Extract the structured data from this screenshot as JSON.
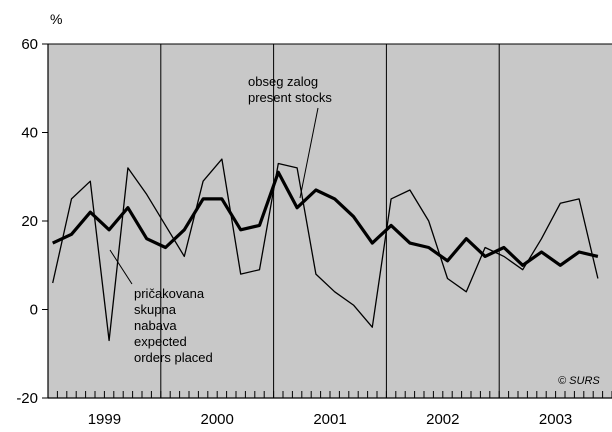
{
  "chart_data": {
    "type": "line",
    "unit_label": "%",
    "ylim": [
      -20,
      60
    ],
    "y_ticks": [
      -20,
      0,
      20,
      40,
      60
    ],
    "x_start": "1999-01",
    "x_end": "2003-12",
    "year_labels": [
      "1999",
      "2000",
      "2001",
      "2002",
      "2003"
    ],
    "year_separators": [
      "1999-12",
      "2000-12",
      "2001-12",
      "2002-12"
    ],
    "grid": false,
    "colors": {
      "plot_background": "#c8c8c8",
      "line": "#000000"
    },
    "series": [
      {
        "name_lines": [
          "pričakovana",
          "skupna",
          "nabava",
          "expected",
          "orders placed"
        ],
        "style": "thin",
        "x": [
          "1999-01",
          "1999-03",
          "1999-05",
          "1999-07",
          "1999-09",
          "1999-11",
          "2000-01",
          "2000-03",
          "2000-05",
          "2000-07",
          "2000-09",
          "2000-11",
          "2001-01",
          "2001-03",
          "2001-05",
          "2001-07",
          "2001-09",
          "2001-11",
          "2002-01",
          "2002-03",
          "2002-05",
          "2002-07",
          "2002-09",
          "2002-11",
          "2003-01",
          "2003-03",
          "2003-05",
          "2003-07",
          "2003-09",
          "2003-11"
        ],
        "values": [
          6,
          25,
          29,
          -7,
          32,
          26,
          19,
          12,
          29,
          34,
          8,
          9,
          33,
          32,
          8,
          4,
          1,
          -4,
          25,
          27,
          20,
          7,
          4,
          14,
          12,
          9,
          16,
          24,
          25,
          7
        ]
      },
      {
        "name_lines": [
          "obseg zalog",
          "present stocks"
        ],
        "style": "thick",
        "x": [
          "1999-01",
          "1999-03",
          "1999-05",
          "1999-07",
          "1999-09",
          "1999-11",
          "2000-01",
          "2000-03",
          "2000-05",
          "2000-07",
          "2000-09",
          "2000-11",
          "2001-01",
          "2001-03",
          "2001-05",
          "2001-07",
          "2001-09",
          "2001-11",
          "2002-01",
          "2002-03",
          "2002-05",
          "2002-07",
          "2002-09",
          "2002-11",
          "2003-01",
          "2003-03",
          "2003-05",
          "2003-07",
          "2003-09",
          "2003-11"
        ],
        "values": [
          15,
          17,
          22,
          18,
          23,
          16,
          14,
          18,
          25,
          25,
          18,
          19,
          31,
          23,
          27,
          25,
          21,
          15,
          19,
          15,
          14,
          11,
          16,
          12,
          14,
          10,
          13,
          10,
          13,
          12
        ]
      }
    ],
    "credit": "© SURS"
  }
}
